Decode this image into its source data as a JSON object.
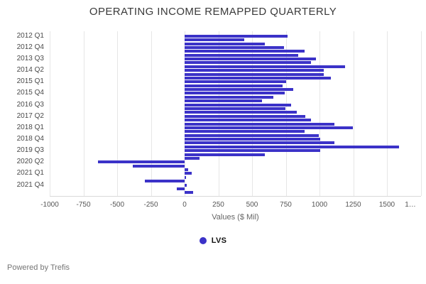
{
  "page": {
    "title": "OPERATING INCOME REMAPPED QUARTERLY",
    "footer_text": "Powered by Trefis"
  },
  "legend": {
    "label": "LVS",
    "marker_color": "#3b32c8"
  },
  "chart_data": {
    "type": "bar",
    "orientation": "horizontal",
    "title": "OPERATING INCOME REMAPPED QUARTERLY",
    "xlabel": "Values ($ Mil)",
    "ylabel": "",
    "xlim": [
      -1000,
      1750
    ],
    "grid": true,
    "legend_position": "bottom-center",
    "bar_color": "#3b32c8",
    "x_ticks": [
      -1000,
      -750,
      -500,
      -250,
      0,
      250,
      500,
      750,
      1000,
      1250,
      1500,
      1750
    ],
    "x_tick_labels": [
      "-1000",
      "-750",
      "-500",
      "-250",
      "0",
      "250",
      "500",
      "750",
      "1000",
      "1250",
      "1500",
      "1…"
    ],
    "y_tick_step": 3,
    "visible_y_tick_labels": [
      "2012 Q1",
      "2012 Q4",
      "2013 Q3",
      "2014 Q2",
      "2015 Q1",
      "2015 Q4",
      "2016 Q3",
      "2017 Q2",
      "2018 Q1",
      "2018 Q4",
      "2019 Q3",
      "2020 Q2",
      "2021 Q1",
      "2021 Q4"
    ],
    "categories": [
      "2012 Q1",
      "2012 Q2",
      "2012 Q3",
      "2012 Q4",
      "2013 Q1",
      "2013 Q2",
      "2013 Q3",
      "2013 Q4",
      "2014 Q1",
      "2014 Q2",
      "2014 Q3",
      "2014 Q4",
      "2015 Q1",
      "2015 Q2",
      "2015 Q3",
      "2015 Q4",
      "2016 Q1",
      "2016 Q2",
      "2016 Q3",
      "2016 Q4",
      "2017 Q1",
      "2017 Q2",
      "2017 Q3",
      "2017 Q4",
      "2018 Q1",
      "2018 Q2",
      "2018 Q3",
      "2018 Q4",
      "2019 Q1",
      "2019 Q2",
      "2019 Q3",
      "2019 Q4",
      "2020 Q1",
      "2020 Q2",
      "2020 Q3",
      "2020 Q4",
      "2021 Q1",
      "2021 Q2",
      "2021 Q3",
      "2021 Q4",
      "2022 Q1",
      "2022 Q2"
    ],
    "series": [
      {
        "name": "LVS",
        "values": [
          765,
          440,
          595,
          735,
          890,
          840,
          975,
          935,
          1190,
          1030,
          1030,
          1085,
          755,
          725,
          805,
          740,
          655,
          575,
          790,
          745,
          830,
          895,
          935,
          1110,
          1245,
          890,
          995,
          1005,
          1110,
          1590,
          1005,
          595,
          110,
          -640,
          -385,
          25,
          55,
          10,
          -295,
          15,
          -60,
          65
        ]
      }
    ]
  }
}
